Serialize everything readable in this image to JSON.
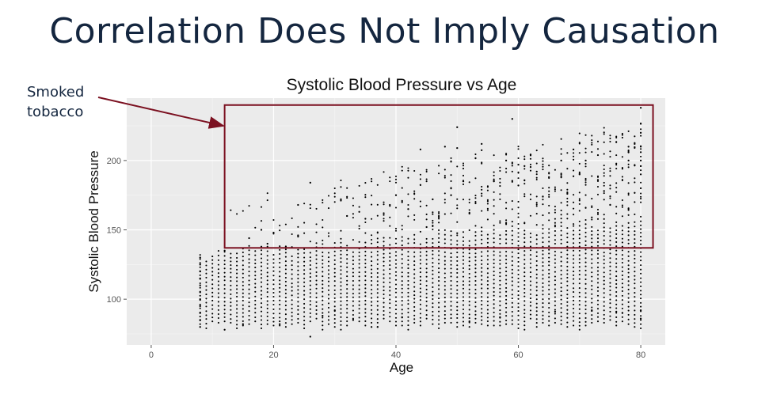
{
  "slide": {
    "title": "Correlation Does Not Imply Causation"
  },
  "annotation": {
    "line1": "Smoked",
    "line2": "tobacco",
    "color": "#7b1020",
    "box_range": {
      "x": [
        12,
        82
      ],
      "y": [
        137,
        240
      ]
    }
  },
  "chart_data": {
    "type": "scatter",
    "title": "Systolic Blood Pressure vs Age",
    "xlabel": "Age",
    "ylabel": "Systolic Blood Pressure",
    "xlim": [
      -4,
      84
    ],
    "ylim": [
      67,
      245
    ],
    "x_ticks": [
      0,
      20,
      40,
      60,
      80
    ],
    "y_ticks": [
      100,
      150,
      200
    ],
    "grid": true,
    "panel_background": "#ebebeb",
    "point_color": "#000000",
    "x_range_of_points": [
      8,
      80
    ],
    "series": [
      {
        "points": [
          [
            8,
            130
          ],
          [
            8,
            125
          ],
          [
            8,
            120
          ],
          [
            8,
            115
          ],
          [
            8,
            110
          ],
          [
            8,
            105
          ],
          [
            8,
            100
          ],
          [
            8,
            95
          ],
          [
            8,
            90
          ],
          [
            8,
            85
          ],
          [
            8,
            80
          ],
          [
            12,
            135
          ],
          [
            12,
            78
          ],
          [
            15,
            82
          ],
          [
            16,
            144
          ],
          [
            18,
            150
          ],
          [
            19,
            140
          ],
          [
            20,
            148
          ],
          [
            21,
            82
          ],
          [
            22,
            138
          ],
          [
            24,
            146
          ],
          [
            24,
            168
          ],
          [
            26,
            184
          ],
          [
            26,
            73
          ],
          [
            28,
            88
          ],
          [
            30,
            92
          ],
          [
            31,
            172
          ],
          [
            32,
            160
          ],
          [
            33,
            85
          ],
          [
            34,
            163
          ],
          [
            35,
            158
          ],
          [
            36,
            80
          ],
          [
            37,
            80
          ],
          [
            38,
            162
          ],
          [
            39,
            168
          ],
          [
            40,
            175
          ],
          [
            41,
            170
          ],
          [
            41,
            87
          ],
          [
            42,
            165
          ],
          [
            44,
            208
          ],
          [
            45,
            152
          ],
          [
            46,
            172
          ],
          [
            47,
            160
          ],
          [
            48,
            210
          ],
          [
            49,
            175
          ],
          [
            50,
            224
          ],
          [
            50,
            209
          ],
          [
            51,
            185
          ],
          [
            52,
            84
          ],
          [
            54,
            212
          ],
          [
            56,
            185
          ],
          [
            57,
            87
          ],
          [
            58,
            200
          ],
          [
            59,
            230
          ],
          [
            60,
            182
          ],
          [
            60,
            197
          ],
          [
            61,
            196
          ],
          [
            62,
            204
          ],
          [
            63,
            192
          ],
          [
            64,
            174
          ],
          [
            65,
            188
          ],
          [
            66,
            91
          ],
          [
            67,
            200
          ],
          [
            68,
            176
          ],
          [
            69,
            208
          ],
          [
            70,
            190
          ],
          [
            71,
            200
          ],
          [
            72,
            92
          ],
          [
            73,
            186
          ],
          [
            74,
            178
          ],
          [
            75,
            168
          ],
          [
            76,
            91
          ],
          [
            77,
            90
          ],
          [
            78,
            210
          ],
          [
            78,
            200
          ],
          [
            79,
            212
          ],
          [
            80,
            238
          ],
          [
            80,
            220
          ],
          [
            80,
            210
          ],
          [
            80,
            206
          ],
          [
            80,
            200
          ],
          [
            80,
            196
          ],
          [
            80,
            190
          ],
          [
            80,
            180
          ],
          [
            80,
            92
          ],
          [
            80,
            86
          ]
        ]
      }
    ]
  }
}
